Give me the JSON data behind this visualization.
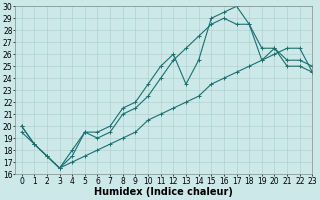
{
  "xlabel": "Humidex (Indice chaleur)",
  "background_color": "#cce8e8",
  "line_color": "#1a7070",
  "grid_color": "#aacccc",
  "xlim": [
    -0.5,
    23
  ],
  "ylim": [
    16,
    30
  ],
  "yticks": [
    16,
    17,
    18,
    19,
    20,
    21,
    22,
    23,
    24,
    25,
    26,
    27,
    28,
    29,
    30
  ],
  "xticks": [
    0,
    1,
    2,
    3,
    4,
    5,
    6,
    7,
    8,
    9,
    10,
    11,
    12,
    13,
    14,
    15,
    16,
    17,
    18,
    19,
    20,
    21,
    22,
    23
  ],
  "line1_x": [
    0,
    1,
    2,
    3,
    4,
    5,
    6,
    7,
    8,
    9,
    10,
    11,
    12,
    13,
    14,
    15,
    16,
    17,
    18,
    19,
    20,
    21,
    22,
    23
  ],
  "line1_y": [
    20.0,
    18.5,
    17.5,
    16.5,
    17.5,
    19.5,
    19.5,
    20.0,
    21.5,
    22.0,
    23.5,
    25.0,
    26.0,
    23.5,
    25.5,
    29.0,
    29.5,
    30.0,
    28.5,
    26.5,
    26.5,
    25.0,
    25.0,
    24.5
  ],
  "line2_x": [
    0,
    1,
    2,
    3,
    4,
    5,
    6,
    7,
    8,
    9,
    10,
    11,
    12,
    13,
    14,
    15,
    16,
    17,
    18,
    19,
    20,
    21,
    22,
    23
  ],
  "line2_y": [
    20.0,
    18.5,
    17.5,
    16.5,
    18.0,
    19.5,
    19.0,
    19.5,
    21.0,
    21.5,
    22.5,
    24.0,
    25.5,
    26.5,
    27.5,
    28.5,
    29.0,
    28.5,
    28.5,
    25.5,
    26.5,
    25.5,
    25.5,
    25.0
  ],
  "line3_x": [
    0,
    1,
    2,
    3,
    4,
    5,
    6,
    7,
    8,
    9,
    10,
    11,
    12,
    13,
    14,
    15,
    16,
    17,
    18,
    19,
    20,
    21,
    22,
    23
  ],
  "line3_y": [
    19.5,
    18.5,
    17.5,
    16.5,
    17.0,
    17.5,
    18.0,
    18.5,
    19.0,
    19.5,
    20.5,
    21.0,
    21.5,
    22.0,
    22.5,
    23.5,
    24.0,
    24.5,
    25.0,
    25.5,
    26.0,
    26.5,
    26.5,
    24.5
  ],
  "marker": "+",
  "markersize": 3,
  "linewidth": 0.8,
  "xlabel_fontsize": 7,
  "tick_fontsize": 5.5
}
